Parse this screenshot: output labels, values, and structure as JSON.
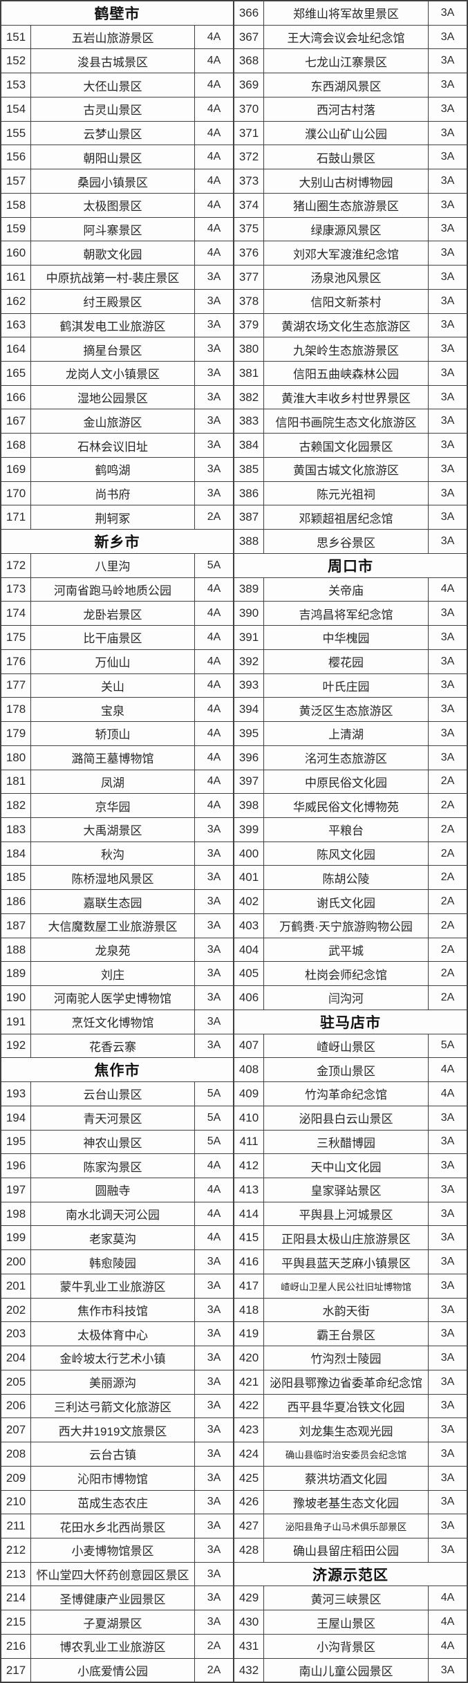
{
  "page": {
    "description_colors": {
      "border": "#3f3f3f",
      "text": "#262626",
      "header_text": "#101010",
      "background": "#ffffff"
    }
  },
  "tables": [
    {
      "id": "left",
      "sections": [
        {
          "city": "鹤壁市",
          "rows": [
            [
              "151",
              "五岩山旅游景区",
              "4A"
            ],
            [
              "152",
              "浚县古城景区",
              "4A"
            ],
            [
              "153",
              "大伾山景区",
              "4A"
            ],
            [
              "154",
              "古灵山景区",
              "4A"
            ],
            [
              "155",
              "云梦山景区",
              "4A"
            ],
            [
              "156",
              "朝阳山景区",
              "4A"
            ],
            [
              "157",
              "桑园小镇景区",
              "4A"
            ],
            [
              "158",
              "太极图景区",
              "4A"
            ],
            [
              "159",
              "阿斗寨景区",
              "4A"
            ],
            [
              "160",
              "朝歌文化园",
              "4A"
            ],
            [
              "161",
              "中原抗战第一村-裴庄景区",
              "3A"
            ],
            [
              "162",
              "纣王殿景区",
              "3A"
            ],
            [
              "163",
              "鹤淇发电工业旅游区",
              "3A"
            ],
            [
              "164",
              "摘星台景区",
              "3A"
            ],
            [
              "165",
              "龙岗人文小镇景区",
              "3A"
            ],
            [
              "166",
              "湿地公园景区",
              "3A"
            ],
            [
              "167",
              "金山旅游区",
              "3A"
            ],
            [
              "168",
              "石林会议旧址",
              "3A"
            ],
            [
              "169",
              "鹤鸣湖",
              "3A"
            ],
            [
              "170",
              "尚书府",
              "3A"
            ],
            [
              "171",
              "荆轲冢",
              "2A"
            ]
          ]
        },
        {
          "city": "新乡市",
          "rows": [
            [
              "172",
              "八里沟",
              "5A"
            ],
            [
              "173",
              "河南省跑马岭地质公园",
              "4A"
            ],
            [
              "174",
              "龙卧岩景区",
              "4A"
            ],
            [
              "175",
              "比干庙景区",
              "4A"
            ],
            [
              "176",
              "万仙山",
              "4A"
            ],
            [
              "177",
              "关山",
              "4A"
            ],
            [
              "178",
              "宝泉",
              "4A"
            ],
            [
              "179",
              "轿顶山",
              "4A"
            ],
            [
              "180",
              "潞简王墓博物馆",
              "4A"
            ],
            [
              "181",
              "凤湖",
              "4A"
            ],
            [
              "182",
              "京华园",
              "4A"
            ],
            [
              "183",
              "大禹湖景区",
              "3A"
            ],
            [
              "184",
              "秋沟",
              "3A"
            ],
            [
              "185",
              "陈桥湿地风景区",
              "3A"
            ],
            [
              "186",
              "嘉联生态园",
              "3A"
            ],
            [
              "187",
              "大信魔数屋工业旅游景区",
              "3A"
            ],
            [
              "188",
              "龙泉苑",
              "3A"
            ],
            [
              "189",
              "刘庄",
              "3A"
            ],
            [
              "190",
              "河南驼人医学史博物馆",
              "3A"
            ],
            [
              "191",
              "烹饪文化博物馆",
              "3A"
            ],
            [
              "192",
              "花香云寨",
              "3A"
            ]
          ]
        },
        {
          "city": "焦作市",
          "rows": [
            [
              "193",
              "云台山景区",
              "5A"
            ],
            [
              "194",
              "青天河景区",
              "5A"
            ],
            [
              "195",
              "神农山景区",
              "5A"
            ],
            [
              "196",
              "陈家沟景区",
              "4A"
            ],
            [
              "197",
              "圆融寺",
              "4A"
            ],
            [
              "198",
              "南水北调天河公园",
              "4A"
            ],
            [
              "199",
              "老家莫沟",
              "4A"
            ],
            [
              "200",
              "韩愈陵园",
              "3A"
            ],
            [
              "201",
              "蒙牛乳业工业旅游区",
              "3A"
            ],
            [
              "202",
              "焦作市科技馆",
              "3A"
            ],
            [
              "203",
              "太极体育中心",
              "3A"
            ],
            [
              "204",
              "金岭坡太行艺术小镇",
              "3A"
            ],
            [
              "205",
              "美丽源沟",
              "3A"
            ],
            [
              "206",
              "三利达弓箭文化旅游区",
              "3A"
            ],
            [
              "207",
              "西大井1919文旅景区",
              "3A"
            ],
            [
              "208",
              "云台古镇",
              "3A"
            ],
            [
              "209",
              "沁阳市博物馆",
              "3A"
            ],
            [
              "210",
              "茁成生态农庄",
              "3A"
            ],
            [
              "211",
              "花田水乡北西尚景区",
              "3A"
            ],
            [
              "212",
              "小麦博物馆景区",
              "3A"
            ],
            [
              "213",
              "怀山堂四大怀药创意园区景区",
              "3A"
            ],
            [
              "214",
              "圣博健康产业园景区",
              "3A"
            ],
            [
              "215",
              "子夏湖景区",
              "3A"
            ],
            [
              "216",
              "博农乳业工业旅游区",
              "2A"
            ],
            [
              "217",
              "小底爱情公园",
              "2A"
            ]
          ]
        }
      ]
    },
    {
      "id": "right",
      "sections": [
        {
          "city": null,
          "rows": [
            [
              "366",
              "郑维山将军故里景区",
              "3A"
            ],
            [
              "367",
              "王大湾会议会址纪念馆",
              "3A"
            ],
            [
              "368",
              "七龙山江寨景区",
              "3A"
            ],
            [
              "369",
              "东西湖风景区",
              "3A"
            ],
            [
              "370",
              "西河古村落",
              "3A"
            ],
            [
              "371",
              "濮公山矿山公园",
              "3A"
            ],
            [
              "372",
              "石鼓山景区",
              "3A"
            ],
            [
              "373",
              "大别山古树博物园",
              "3A"
            ],
            [
              "374",
              "猪山圈生态旅游景区",
              "3A"
            ],
            [
              "375",
              "绿康源风景区",
              "3A"
            ],
            [
              "376",
              "刘邓大军渡淮纪念馆",
              "3A"
            ],
            [
              "377",
              "汤泉池风景区",
              "3A"
            ],
            [
              "378",
              "信阳文新茶村",
              "3A"
            ],
            [
              "379",
              "黄湖农场文化生态旅游区",
              "3A"
            ],
            [
              "380",
              "九架岭生态旅游景区",
              "3A"
            ],
            [
              "381",
              "信阳五曲峡森林公园",
              "3A"
            ],
            [
              "382",
              "黄淮大丰收乡村世界景区",
              "3A"
            ],
            [
              "383",
              "信阳书画院生态文化旅游区",
              "3A"
            ],
            [
              "384",
              "古赖国文化园景区",
              "3A"
            ],
            [
              "385",
              "黄国古城文化旅游区",
              "3A"
            ],
            [
              "386",
              "陈元光祖祠",
              "3A"
            ],
            [
              "387",
              "邓颖超祖居纪念馆",
              "3A"
            ],
            [
              "388",
              "思乡谷景区",
              "3A"
            ]
          ]
        },
        {
          "city": "周口市",
          "rows": [
            [
              "389",
              "关帝庙",
              "4A"
            ],
            [
              "390",
              "吉鸿昌将军纪念馆",
              "3A"
            ],
            [
              "391",
              "中华槐园",
              "3A"
            ],
            [
              "392",
              "樱花园",
              "3A"
            ],
            [
              "393",
              "叶氏庄园",
              "3A"
            ],
            [
              "394",
              "黄泛区生态旅游区",
              "3A"
            ],
            [
              "395",
              "上清湖",
              "3A"
            ],
            [
              "396",
              "洺河生态旅游区",
              "3A"
            ],
            [
              "397",
              "中原民俗文化园",
              "2A"
            ],
            [
              "398",
              "华威民俗文化博物苑",
              "2A"
            ],
            [
              "399",
              "平粮台",
              "2A"
            ],
            [
              "400",
              "陈风文化园",
              "2A"
            ],
            [
              "401",
              "陈胡公陵",
              "2A"
            ],
            [
              "402",
              "谢氏文化园",
              "2A"
            ],
            [
              "403",
              "万鹤赉·天宁旅游购物公园",
              "2A"
            ],
            [
              "404",
              "武平城",
              "2A"
            ],
            [
              "405",
              "杜岗会师纪念馆",
              "2A"
            ],
            [
              "406",
              "闫沟河",
              "2A"
            ]
          ]
        },
        {
          "city": "驻马店市",
          "rows": [
            [
              "407",
              "嵖岈山景区",
              "5A"
            ],
            [
              "408",
              "金顶山景区",
              "4A"
            ],
            [
              "409",
              "竹沟革命纪念馆",
              "4A"
            ],
            [
              "410",
              "泌阳县白云山景区",
              "3A"
            ],
            [
              "411",
              "三秋醋博园",
              "3A"
            ],
            [
              "412",
              "天中山文化园",
              "3A"
            ],
            [
              "413",
              "皇家驿站景区",
              "3A"
            ],
            [
              "414",
              "平舆县上河城景区",
              "3A"
            ],
            [
              "415",
              "正阳县太极山庄旅游景区",
              "3A"
            ],
            [
              "416",
              "平舆县蓝天芝麻小镇景区",
              "3A"
            ],
            [
              "417",
              "嵖岈山卫星人民公社旧址博物馆",
              "3A",
              1
            ],
            [
              "418",
              "水韵天街",
              "3A"
            ],
            [
              "419",
              "霸王台景区",
              "3A"
            ],
            [
              "420",
              "竹沟烈士陵园",
              "3A"
            ],
            [
              "421",
              "泌阳县鄂豫边省委革命纪念馆",
              "3A"
            ],
            [
              "422",
              "西平县华夏冶铁文化园",
              "3A"
            ],
            [
              "423",
              "刘龙集生态观光园",
              "3A"
            ],
            [
              "424",
              "确山县临时治安委员会纪念馆",
              "3A",
              1
            ],
            [
              "425",
              "蔡洪坊酒文化园",
              "3A"
            ],
            [
              "426",
              "豫坡老基生态文化园",
              "3A"
            ],
            [
              "427",
              "泌阳县角子山马术俱乐部景区",
              "3A",
              1
            ],
            [
              "428",
              "确山县留庄稻田公园",
              "3A"
            ]
          ]
        },
        {
          "city": "济源示范区",
          "rows": [
            [
              "429",
              "黄河三峡景区",
              "4A"
            ],
            [
              "430",
              "王屋山景区",
              "4A"
            ],
            [
              "431",
              "小沟背景区",
              "4A"
            ],
            [
              "432",
              "南山儿童公园景区",
              "3A"
            ]
          ]
        }
      ]
    }
  ]
}
